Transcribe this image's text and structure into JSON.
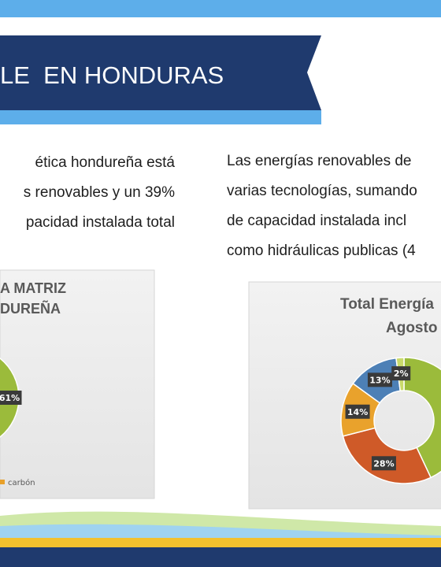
{
  "header": {
    "title": "LE  EN HONDURAS"
  },
  "left_text": {
    "lines": [
      "ética hondureña está",
      "s renovables y un 39%",
      "pacidad instalada total"
    ]
  },
  "right_text": {
    "lines": [
      "Las energías renovables de",
      "varias tecnologías, sumando",
      "de capacidad instalada incl",
      "como hidráulicas publicas (4"
    ]
  },
  "charts": [
    {
      "type": "pie",
      "title_lines": [
        "A MATRIZ",
        "DUREÑA"
      ],
      "values": [
        61
      ],
      "value_labels": [
        "61%"
      ],
      "colors": [
        "#9bbb3b"
      ],
      "legend": [
        {
          "name": "carbón",
          "color": "#e8a02a"
        }
      ]
    },
    {
      "type": "pie",
      "title_lines": [
        "Total Energía",
        "Agosto"
      ],
      "values": [
        43,
        28,
        14,
        13,
        2
      ],
      "value_labels": [
        null,
        "28%",
        "14%",
        "13%",
        "2%"
      ],
      "colors": [
        "#9bbb3b",
        "#cf5a28",
        "#e9a22c",
        "#4d80b6",
        "#c9da6c"
      ]
    }
  ]
}
